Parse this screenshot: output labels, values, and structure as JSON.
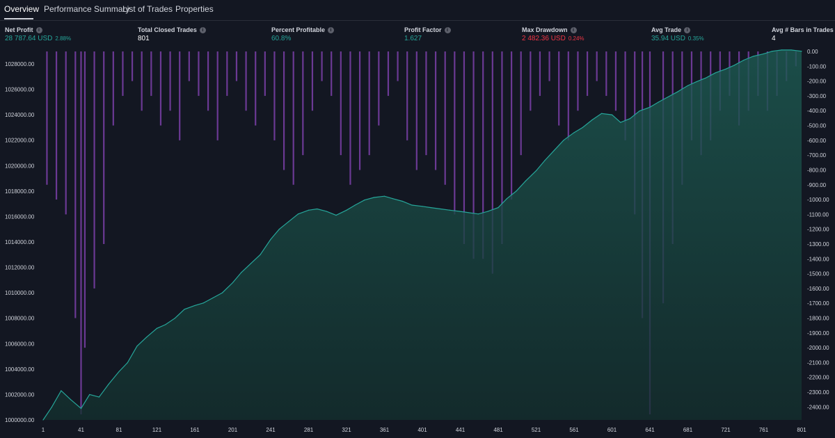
{
  "tabs": [
    {
      "label": "Overview",
      "active": true
    },
    {
      "label": "Performance Summary",
      "active": false
    },
    {
      "label": "List of Trades",
      "active": false
    },
    {
      "label": "Properties",
      "active": false
    }
  ],
  "metrics": [
    {
      "label": "Net Profit",
      "value": "28 787.64 USD",
      "pct": "2.88%",
      "value_color": "green"
    },
    {
      "label": "Total Closed Trades",
      "value": "801",
      "pct": "",
      "value_color": "white"
    },
    {
      "label": "Percent Profitable",
      "value": "60.8%",
      "pct": "",
      "value_color": "green"
    },
    {
      "label": "Profit Factor",
      "value": "1.627",
      "pct": "",
      "value_color": "green"
    },
    {
      "label": "Max Drawdown",
      "value": "2 482.36 USD",
      "pct": "0.24%",
      "value_color": "red"
    },
    {
      "label": "Avg Trade",
      "value": "35.94 USD",
      "pct": "0.35%",
      "value_color": "green"
    },
    {
      "label": "Avg # Bars in Trades",
      "value": "4",
      "pct": "",
      "value_color": "white"
    }
  ],
  "chart_data": {
    "type": "area",
    "colors": {
      "equity_line": "#26a69a",
      "equity_fill": "#1d5a52",
      "drawdown": "#7b3fa8",
      "background": "#131722"
    },
    "x_ticks": [
      "1",
      "41",
      "81",
      "121",
      "161",
      "201",
      "241",
      "281",
      "321",
      "361",
      "401",
      "441",
      "481",
      "521",
      "561",
      "601",
      "641",
      "681",
      "721",
      "761",
      "801"
    ],
    "left_axis_ticks": [
      "1028000.00",
      "1026000.00",
      "1024000.00",
      "1022000.00",
      "1020000.00",
      "1018000.00",
      "1016000.00",
      "1014000.00",
      "1012000.00",
      "1010000.00",
      "1008000.00",
      "1006000.00",
      "1004000.00",
      "1002000.00",
      "1000000.00"
    ],
    "right_axis_ticks": [
      "0.00",
      "-100.00",
      "-200.00",
      "-300.00",
      "-400.00",
      "-500.00",
      "-600.00",
      "-700.00",
      "-800.00",
      "-900.00",
      "-1000.00",
      "-1100.00",
      "-1200.00",
      "-1300.00",
      "-1400.00",
      "-1500.00",
      "-1600.00",
      "-1700.00",
      "-1800.00",
      "-1900.00",
      "-2000.00",
      "-2100.00",
      "-2200.00",
      "-2300.00",
      "-2400.00"
    ],
    "equity_ylim": [
      1000000,
      1028000
    ],
    "drawdown_ylim": [
      -2450,
      0
    ],
    "xlim": [
      1,
      801
    ],
    "equity": {
      "x": [
        1,
        10,
        20,
        30,
        41,
        50,
        60,
        70,
        81,
        90,
        100,
        110,
        121,
        130,
        140,
        150,
        161,
        170,
        180,
        190,
        201,
        210,
        220,
        230,
        241,
        250,
        260,
        270,
        281,
        290,
        300,
        310,
        321,
        330,
        340,
        350,
        361,
        370,
        380,
        390,
        401,
        410,
        420,
        430,
        441,
        450,
        460,
        470,
        481,
        490,
        500,
        510,
        521,
        530,
        540,
        550,
        561,
        570,
        580,
        590,
        601,
        610,
        620,
        630,
        641,
        650,
        660,
        670,
        681,
        690,
        700,
        710,
        721,
        730,
        740,
        750,
        761,
        770,
        780,
        790,
        801
      ],
      "y": [
        1000000,
        1001000,
        1002300,
        1001600,
        1000900,
        1002000,
        1001800,
        1002800,
        1003800,
        1004500,
        1005800,
        1006500,
        1007200,
        1007500,
        1008000,
        1008700,
        1009000,
        1009200,
        1009600,
        1010000,
        1010800,
        1011600,
        1012300,
        1013000,
        1014200,
        1015000,
        1015600,
        1016200,
        1016500,
        1016600,
        1016400,
        1016100,
        1016500,
        1016900,
        1017300,
        1017500,
        1017600,
        1017400,
        1017200,
        1016900,
        1016800,
        1016700,
        1016600,
        1016500,
        1016400,
        1016300,
        1016200,
        1016400,
        1016700,
        1017400,
        1018000,
        1018800,
        1019600,
        1020400,
        1021200,
        1022000,
        1022600,
        1023000,
        1023600,
        1024100,
        1024000,
        1023400,
        1023700,
        1024300,
        1024600,
        1025000,
        1025400,
        1025800,
        1026300,
        1026600,
        1026900,
        1027300,
        1027600,
        1027900,
        1028300,
        1028600,
        1028800,
        1029000,
        1029100,
        1029100,
        1029000
      ]
    },
    "drawdown": {
      "x": [
        5,
        15,
        25,
        35,
        41,
        45,
        55,
        65,
        75,
        85,
        95,
        105,
        115,
        125,
        135,
        145,
        155,
        165,
        175,
        185,
        195,
        205,
        215,
        225,
        235,
        245,
        255,
        265,
        275,
        285,
        295,
        305,
        315,
        325,
        335,
        345,
        355,
        365,
        375,
        385,
        395,
        405,
        415,
        425,
        435,
        445,
        455,
        465,
        475,
        485,
        495,
        505,
        515,
        525,
        535,
        545,
        555,
        565,
        575,
        585,
        595,
        605,
        615,
        625,
        633,
        641,
        655,
        665,
        675,
        685,
        695,
        705,
        715,
        725,
        735,
        745,
        755,
        765,
        775,
        785,
        795
      ],
      "y": [
        -900,
        -1000,
        -1100,
        -1800,
        -2450,
        -2000,
        -1600,
        -1300,
        -500,
        -300,
        -200,
        -400,
        -300,
        -500,
        -400,
        -600,
        -200,
        -300,
        -400,
        -600,
        -300,
        -200,
        -400,
        -500,
        -300,
        -600,
        -800,
        -900,
        -700,
        -400,
        -200,
        -300,
        -700,
        -900,
        -800,
        -700,
        -500,
        -300,
        -200,
        -600,
        -800,
        -700,
        -800,
        -900,
        -1100,
        -1300,
        -1400,
        -1400,
        -1500,
        -1300,
        -1000,
        -700,
        -400,
        -300,
        -200,
        -500,
        -600,
        -400,
        -300,
        -200,
        -300,
        -400,
        -600,
        -1100,
        -1800,
        -2450,
        -1700,
        -1300,
        -900,
        -600,
        -700,
        -600,
        -400,
        -300,
        -500,
        -400,
        -300,
        -400,
        -300,
        -200,
        -100
      ]
    }
  }
}
